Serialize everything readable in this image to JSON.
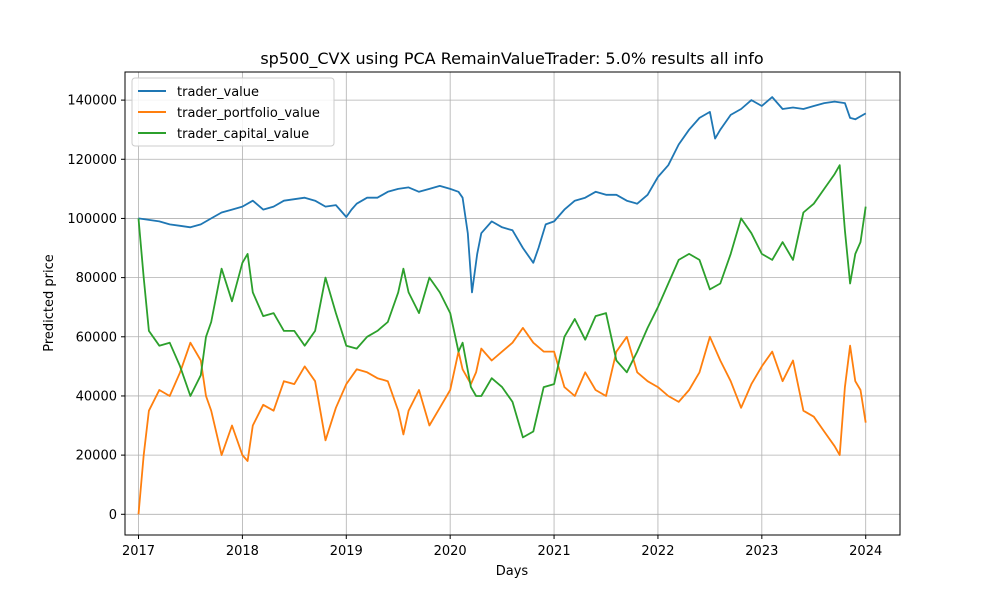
{
  "chart_data": {
    "type": "line",
    "title": "sp500_CVX using PCA RemainValueTrader: 5.0% results all info",
    "xlabel": "Days",
    "ylabel": "Predicted price",
    "xlim": [
      2016.87,
      2024.33
    ],
    "ylim": [
      -7000,
      149500
    ],
    "x_ticks": [
      "2017",
      "2018",
      "2019",
      "2020",
      "2021",
      "2022",
      "2023",
      "2024"
    ],
    "y_ticks": [
      "0",
      "20000",
      "40000",
      "60000",
      "80000",
      "100000",
      "120000",
      "140000"
    ],
    "grid": true,
    "legend_position": "upper-left",
    "series": [
      {
        "name": "trader_value",
        "color": "#1f77b4",
        "points": [
          [
            2017.0,
            100000
          ],
          [
            2017.1,
            99500
          ],
          [
            2017.2,
            99000
          ],
          [
            2017.3,
            98000
          ],
          [
            2017.4,
            97500
          ],
          [
            2017.5,
            97000
          ],
          [
            2017.6,
            98000
          ],
          [
            2017.7,
            100000
          ],
          [
            2017.8,
            102000
          ],
          [
            2017.9,
            103000
          ],
          [
            2018.0,
            104000
          ],
          [
            2018.1,
            106000
          ],
          [
            2018.2,
            103000
          ],
          [
            2018.3,
            104000
          ],
          [
            2018.4,
            106000
          ],
          [
            2018.5,
            106500
          ],
          [
            2018.6,
            107000
          ],
          [
            2018.7,
            106000
          ],
          [
            2018.8,
            104000
          ],
          [
            2018.9,
            104500
          ],
          [
            2019.0,
            100500
          ],
          [
            2019.05,
            103000
          ],
          [
            2019.1,
            105000
          ],
          [
            2019.2,
            107000
          ],
          [
            2019.3,
            107000
          ],
          [
            2019.4,
            109000
          ],
          [
            2019.5,
            110000
          ],
          [
            2019.6,
            110500
          ],
          [
            2019.7,
            109000
          ],
          [
            2019.8,
            110000
          ],
          [
            2019.9,
            111000
          ],
          [
            2020.0,
            110000
          ],
          [
            2020.08,
            109000
          ],
          [
            2020.12,
            107000
          ],
          [
            2020.17,
            95000
          ],
          [
            2020.21,
            75000
          ],
          [
            2020.26,
            88000
          ],
          [
            2020.3,
            95000
          ],
          [
            2020.4,
            99000
          ],
          [
            2020.5,
            97000
          ],
          [
            2020.6,
            96000
          ],
          [
            2020.7,
            90000
          ],
          [
            2020.8,
            85000
          ],
          [
            2020.85,
            90000
          ],
          [
            2020.92,
            98000
          ],
          [
            2021.0,
            99000
          ],
          [
            2021.1,
            103000
          ],
          [
            2021.2,
            106000
          ],
          [
            2021.3,
            107000
          ],
          [
            2021.4,
            109000
          ],
          [
            2021.5,
            108000
          ],
          [
            2021.6,
            108000
          ],
          [
            2021.7,
            106000
          ],
          [
            2021.8,
            105000
          ],
          [
            2021.9,
            108000
          ],
          [
            2022.0,
            114000
          ],
          [
            2022.1,
            118000
          ],
          [
            2022.2,
            125000
          ],
          [
            2022.3,
            130000
          ],
          [
            2022.4,
            134000
          ],
          [
            2022.5,
            136000
          ],
          [
            2022.55,
            127000
          ],
          [
            2022.6,
            130000
          ],
          [
            2022.7,
            135000
          ],
          [
            2022.8,
            137000
          ],
          [
            2022.9,
            140000
          ],
          [
            2023.0,
            138000
          ],
          [
            2023.1,
            141000
          ],
          [
            2023.2,
            137000
          ],
          [
            2023.3,
            137500
          ],
          [
            2023.4,
            137000
          ],
          [
            2023.5,
            138000
          ],
          [
            2023.6,
            139000
          ],
          [
            2023.7,
            139500
          ],
          [
            2023.8,
            139000
          ],
          [
            2023.85,
            134000
          ],
          [
            2023.9,
            133500
          ],
          [
            2024.0,
            135500
          ]
        ]
      },
      {
        "name": "trader_portfolio_value",
        "color": "#ff7f0e",
        "points": [
          [
            2017.0,
            0
          ],
          [
            2017.05,
            20000
          ],
          [
            2017.1,
            35000
          ],
          [
            2017.2,
            42000
          ],
          [
            2017.3,
            40000
          ],
          [
            2017.4,
            48000
          ],
          [
            2017.5,
            58000
          ],
          [
            2017.6,
            52000
          ],
          [
            2017.65,
            40000
          ],
          [
            2017.7,
            35000
          ],
          [
            2017.8,
            20000
          ],
          [
            2017.9,
            30000
          ],
          [
            2018.0,
            20000
          ],
          [
            2018.05,
            18000
          ],
          [
            2018.1,
            30000
          ],
          [
            2018.2,
            37000
          ],
          [
            2018.3,
            35000
          ],
          [
            2018.4,
            45000
          ],
          [
            2018.5,
            44000
          ],
          [
            2018.6,
            50000
          ],
          [
            2018.7,
            45000
          ],
          [
            2018.8,
            25000
          ],
          [
            2018.9,
            36000
          ],
          [
            2019.0,
            44000
          ],
          [
            2019.1,
            49000
          ],
          [
            2019.2,
            48000
          ],
          [
            2019.3,
            46000
          ],
          [
            2019.4,
            45000
          ],
          [
            2019.5,
            35000
          ],
          [
            2019.55,
            27000
          ],
          [
            2019.6,
            35000
          ],
          [
            2019.7,
            42000
          ],
          [
            2019.8,
            30000
          ],
          [
            2019.9,
            36000
          ],
          [
            2020.0,
            42000
          ],
          [
            2020.08,
            55000
          ],
          [
            2020.12,
            49000
          ],
          [
            2020.2,
            44000
          ],
          [
            2020.25,
            48000
          ],
          [
            2020.3,
            56000
          ],
          [
            2020.4,
            52000
          ],
          [
            2020.5,
            55000
          ],
          [
            2020.6,
            58000
          ],
          [
            2020.7,
            63000
          ],
          [
            2020.8,
            58000
          ],
          [
            2020.9,
            55000
          ],
          [
            2021.0,
            55000
          ],
          [
            2021.1,
            43000
          ],
          [
            2021.2,
            40000
          ],
          [
            2021.3,
            48000
          ],
          [
            2021.4,
            42000
          ],
          [
            2021.5,
            40000
          ],
          [
            2021.6,
            55000
          ],
          [
            2021.7,
            60000
          ],
          [
            2021.8,
            48000
          ],
          [
            2021.9,
            45000
          ],
          [
            2022.0,
            43000
          ],
          [
            2022.1,
            40000
          ],
          [
            2022.2,
            38000
          ],
          [
            2022.3,
            42000
          ],
          [
            2022.4,
            48000
          ],
          [
            2022.5,
            60000
          ],
          [
            2022.6,
            52000
          ],
          [
            2022.7,
            45000
          ],
          [
            2022.8,
            36000
          ],
          [
            2022.9,
            44000
          ],
          [
            2023.0,
            50000
          ],
          [
            2023.1,
            55000
          ],
          [
            2023.2,
            45000
          ],
          [
            2023.3,
            52000
          ],
          [
            2023.4,
            35000
          ],
          [
            2023.5,
            33000
          ],
          [
            2023.6,
            28000
          ],
          [
            2023.7,
            23000
          ],
          [
            2023.75,
            20000
          ],
          [
            2023.8,
            43000
          ],
          [
            2023.85,
            57000
          ],
          [
            2023.9,
            45000
          ],
          [
            2023.95,
            42000
          ],
          [
            2024.0,
            31000
          ]
        ]
      },
      {
        "name": "trader_capital_value",
        "color": "#2ca02c",
        "points": [
          [
            2017.0,
            100000
          ],
          [
            2017.05,
            80000
          ],
          [
            2017.1,
            62000
          ],
          [
            2017.2,
            57000
          ],
          [
            2017.3,
            58000
          ],
          [
            2017.4,
            50000
          ],
          [
            2017.5,
            40000
          ],
          [
            2017.6,
            47000
          ],
          [
            2017.65,
            60000
          ],
          [
            2017.7,
            65000
          ],
          [
            2017.8,
            83000
          ],
          [
            2017.9,
            72000
          ],
          [
            2018.0,
            85000
          ],
          [
            2018.05,
            88000
          ],
          [
            2018.1,
            75000
          ],
          [
            2018.2,
            67000
          ],
          [
            2018.3,
            68000
          ],
          [
            2018.4,
            62000
          ],
          [
            2018.5,
            62000
          ],
          [
            2018.6,
            57000
          ],
          [
            2018.7,
            62000
          ],
          [
            2018.8,
            80000
          ],
          [
            2018.9,
            68000
          ],
          [
            2019.0,
            57000
          ],
          [
            2019.1,
            56000
          ],
          [
            2019.2,
            60000
          ],
          [
            2019.3,
            62000
          ],
          [
            2019.4,
            65000
          ],
          [
            2019.5,
            75000
          ],
          [
            2019.55,
            83000
          ],
          [
            2019.6,
            75000
          ],
          [
            2019.7,
            68000
          ],
          [
            2019.8,
            80000
          ],
          [
            2019.9,
            75000
          ],
          [
            2020.0,
            68000
          ],
          [
            2020.08,
            55000
          ],
          [
            2020.12,
            58000
          ],
          [
            2020.2,
            43000
          ],
          [
            2020.25,
            40000
          ],
          [
            2020.3,
            40000
          ],
          [
            2020.4,
            46000
          ],
          [
            2020.5,
            43000
          ],
          [
            2020.6,
            38000
          ],
          [
            2020.7,
            26000
          ],
          [
            2020.8,
            28000
          ],
          [
            2020.9,
            43000
          ],
          [
            2021.0,
            44000
          ],
          [
            2021.1,
            60000
          ],
          [
            2021.2,
            66000
          ],
          [
            2021.3,
            59000
          ],
          [
            2021.4,
            67000
          ],
          [
            2021.5,
            68000
          ],
          [
            2021.6,
            52000
          ],
          [
            2021.7,
            48000
          ],
          [
            2021.8,
            55000
          ],
          [
            2021.9,
            63000
          ],
          [
            2022.0,
            70000
          ],
          [
            2022.1,
            78000
          ],
          [
            2022.2,
            86000
          ],
          [
            2022.3,
            88000
          ],
          [
            2022.4,
            86000
          ],
          [
            2022.5,
            76000
          ],
          [
            2022.6,
            78000
          ],
          [
            2022.7,
            88000
          ],
          [
            2022.8,
            100000
          ],
          [
            2022.9,
            95000
          ],
          [
            2023.0,
            88000
          ],
          [
            2023.1,
            86000
          ],
          [
            2023.2,
            92000
          ],
          [
            2023.3,
            86000
          ],
          [
            2023.4,
            102000
          ],
          [
            2023.5,
            105000
          ],
          [
            2023.6,
            110000
          ],
          [
            2023.7,
            115000
          ],
          [
            2023.75,
            118000
          ],
          [
            2023.8,
            96000
          ],
          [
            2023.85,
            78000
          ],
          [
            2023.9,
            88000
          ],
          [
            2023.95,
            92000
          ],
          [
            2024.0,
            104000
          ]
        ]
      }
    ]
  }
}
